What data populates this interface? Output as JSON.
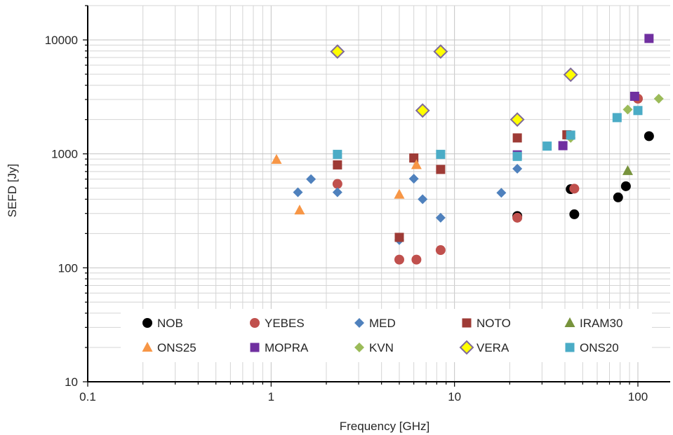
{
  "chart_data": {
    "type": "scatter",
    "title": "",
    "xlabel": "Frequency [GHz]",
    "ylabel": "SEFD [Jy]",
    "x_scale": "log",
    "y_scale": "log",
    "xlim": [
      0.1,
      150
    ],
    "ylim": [
      10,
      20000
    ],
    "grid": true,
    "legend_position": "bottom-inside",
    "x_ticks": [
      {
        "value": 0.1,
        "label": "0.1"
      },
      {
        "value": 1,
        "label": "1"
      },
      {
        "value": 10,
        "label": "10"
      },
      {
        "value": 100,
        "label": "100"
      }
    ],
    "y_ticks": [
      {
        "value": 10,
        "label": "10"
      },
      {
        "value": 100,
        "label": "100"
      },
      {
        "value": 1000,
        "label": "1000"
      },
      {
        "value": 10000,
        "label": "10000"
      }
    ],
    "series": [
      {
        "name": "NOB",
        "marker": "circle",
        "color": "#000000",
        "points": [
          [
            22,
            285
          ],
          [
            43,
            490
          ],
          [
            45,
            295
          ],
          [
            78,
            415
          ],
          [
            86,
            520
          ],
          [
            115,
            1430
          ]
        ]
      },
      {
        "name": "YEBES",
        "marker": "circle",
        "color": "#c0504d",
        "points": [
          [
            2.3,
            545
          ],
          [
            5,
            118
          ],
          [
            6.2,
            118
          ],
          [
            8.4,
            143
          ],
          [
            22,
            275
          ],
          [
            45,
            495
          ],
          [
            100,
            3050
          ]
        ]
      },
      {
        "name": "MED",
        "marker": "diamond",
        "color": "#4f81bd",
        "points": [
          [
            1.4,
            460
          ],
          [
            1.65,
            600
          ],
          [
            2.3,
            460
          ],
          [
            5,
            175
          ],
          [
            6,
            605
          ],
          [
            6.7,
            400
          ],
          [
            8.4,
            275
          ],
          [
            18,
            455
          ],
          [
            22,
            740
          ]
        ]
      },
      {
        "name": "NOTO",
        "marker": "square",
        "color": "#9e3b36",
        "points": [
          [
            2.3,
            800
          ],
          [
            5,
            185
          ],
          [
            6,
            920
          ],
          [
            8.4,
            730
          ],
          [
            22,
            1380
          ],
          [
            41,
            1470
          ]
        ]
      },
      {
        "name": "IRAM30",
        "marker": "triangle",
        "color": "#77933c",
        "points": [
          [
            88,
            710
          ]
        ]
      },
      {
        "name": "ONS25",
        "marker": "triangle",
        "color": "#f79646",
        "points": [
          [
            1.07,
            890
          ],
          [
            1.43,
            320
          ],
          [
            5,
            440
          ],
          [
            6.2,
            800
          ]
        ]
      },
      {
        "name": "MOPRA",
        "marker": "square",
        "color": "#7030a0",
        "points": [
          [
            22,
            980
          ],
          [
            39,
            1180
          ],
          [
            96,
            3200
          ],
          [
            115,
            10300
          ]
        ]
      },
      {
        "name": "KVN",
        "marker": "diamond",
        "color": "#9bbb59",
        "points": [
          [
            43,
            1380
          ],
          [
            88,
            2450
          ],
          [
            130,
            3050
          ]
        ]
      },
      {
        "name": "VERA",
        "marker": "diamond",
        "color": "#ffff00",
        "points": [
          [
            2.3,
            7900
          ],
          [
            6.7,
            2400
          ],
          [
            8.4,
            7900
          ],
          [
            22,
            2000
          ],
          [
            43,
            4950
          ]
        ]
      },
      {
        "name": "ONS20",
        "marker": "square",
        "color": "#4bacc6",
        "points": [
          [
            2.3,
            990
          ],
          [
            8.4,
            990
          ],
          [
            22,
            950
          ],
          [
            32,
            1170
          ],
          [
            43,
            1460
          ],
          [
            77,
            2080
          ],
          [
            100,
            2400
          ]
        ]
      }
    ]
  }
}
